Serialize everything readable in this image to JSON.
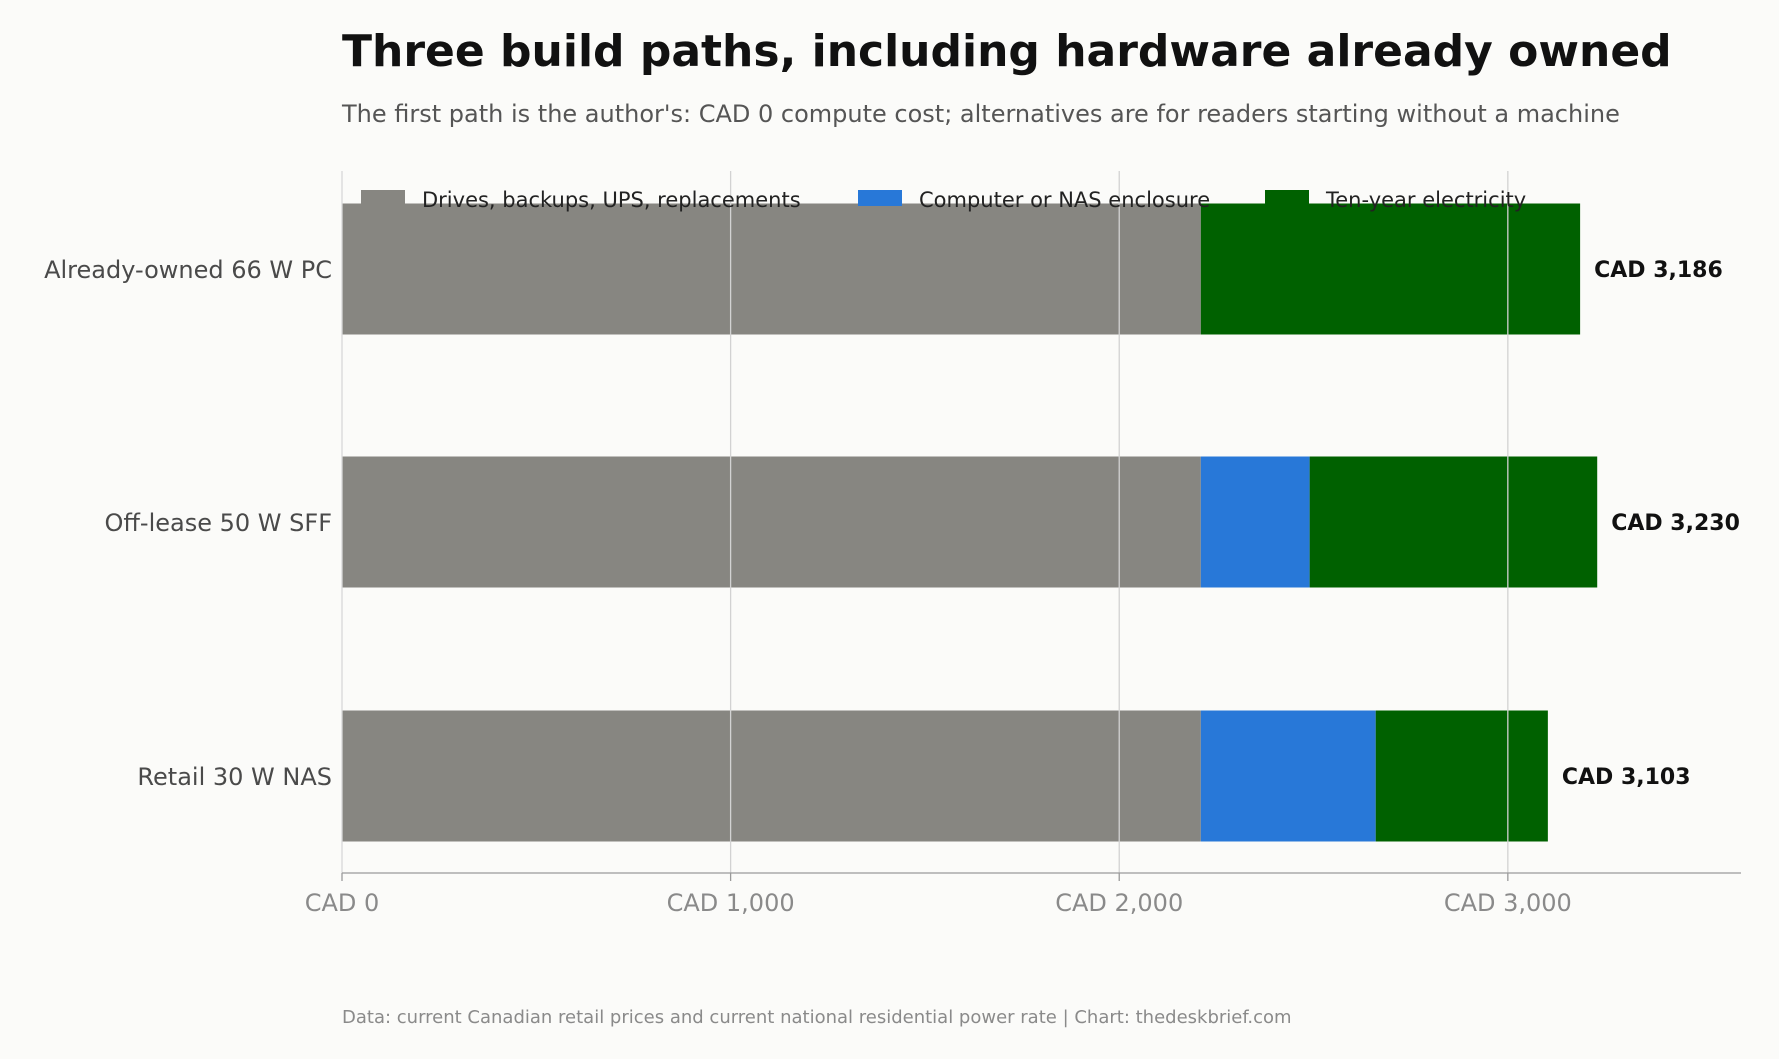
{
  "chart_data": {
    "type": "bar",
    "orientation": "horizontal",
    "stacked": true,
    "title": "Three build paths, including hardware already owned",
    "subtitle": "The first path is the author's: CAD 0 compute cost; alternatives are for readers starting without a machine",
    "source": "Data: current Canadian retail prices and current national residential power rate | Chart: thedeskbrief.com",
    "categories": [
      "Already-owned 66 W PC",
      "Off-lease 50 W SFF",
      "Retail 30 W NAS"
    ],
    "series": [
      {
        "name": "Drives, backups, UPS, replacements",
        "color": "#878681",
        "values": [
          2210,
          2210,
          2210
        ]
      },
      {
        "name": "Computer or NAS enclosure",
        "color": "#2878d8",
        "values": [
          0,
          280,
          450
        ]
      },
      {
        "name": "Ten-year electricity",
        "color": "#006100",
        "values": [
          976,
          740,
          443
        ]
      }
    ],
    "totals": [
      "CAD 3,186",
      "CAD 3,230",
      "CAD 3,103"
    ],
    "xlim": [
      0,
      3600
    ],
    "xticks": [
      0,
      1000,
      2000,
      3000
    ],
    "xtick_labels": [
      "CAD 0",
      "CAD 1,000",
      "CAD 2,000",
      "CAD 3,000"
    ],
    "xlabel": "",
    "ylabel": "",
    "grid": "vertical",
    "legend": "top"
  }
}
